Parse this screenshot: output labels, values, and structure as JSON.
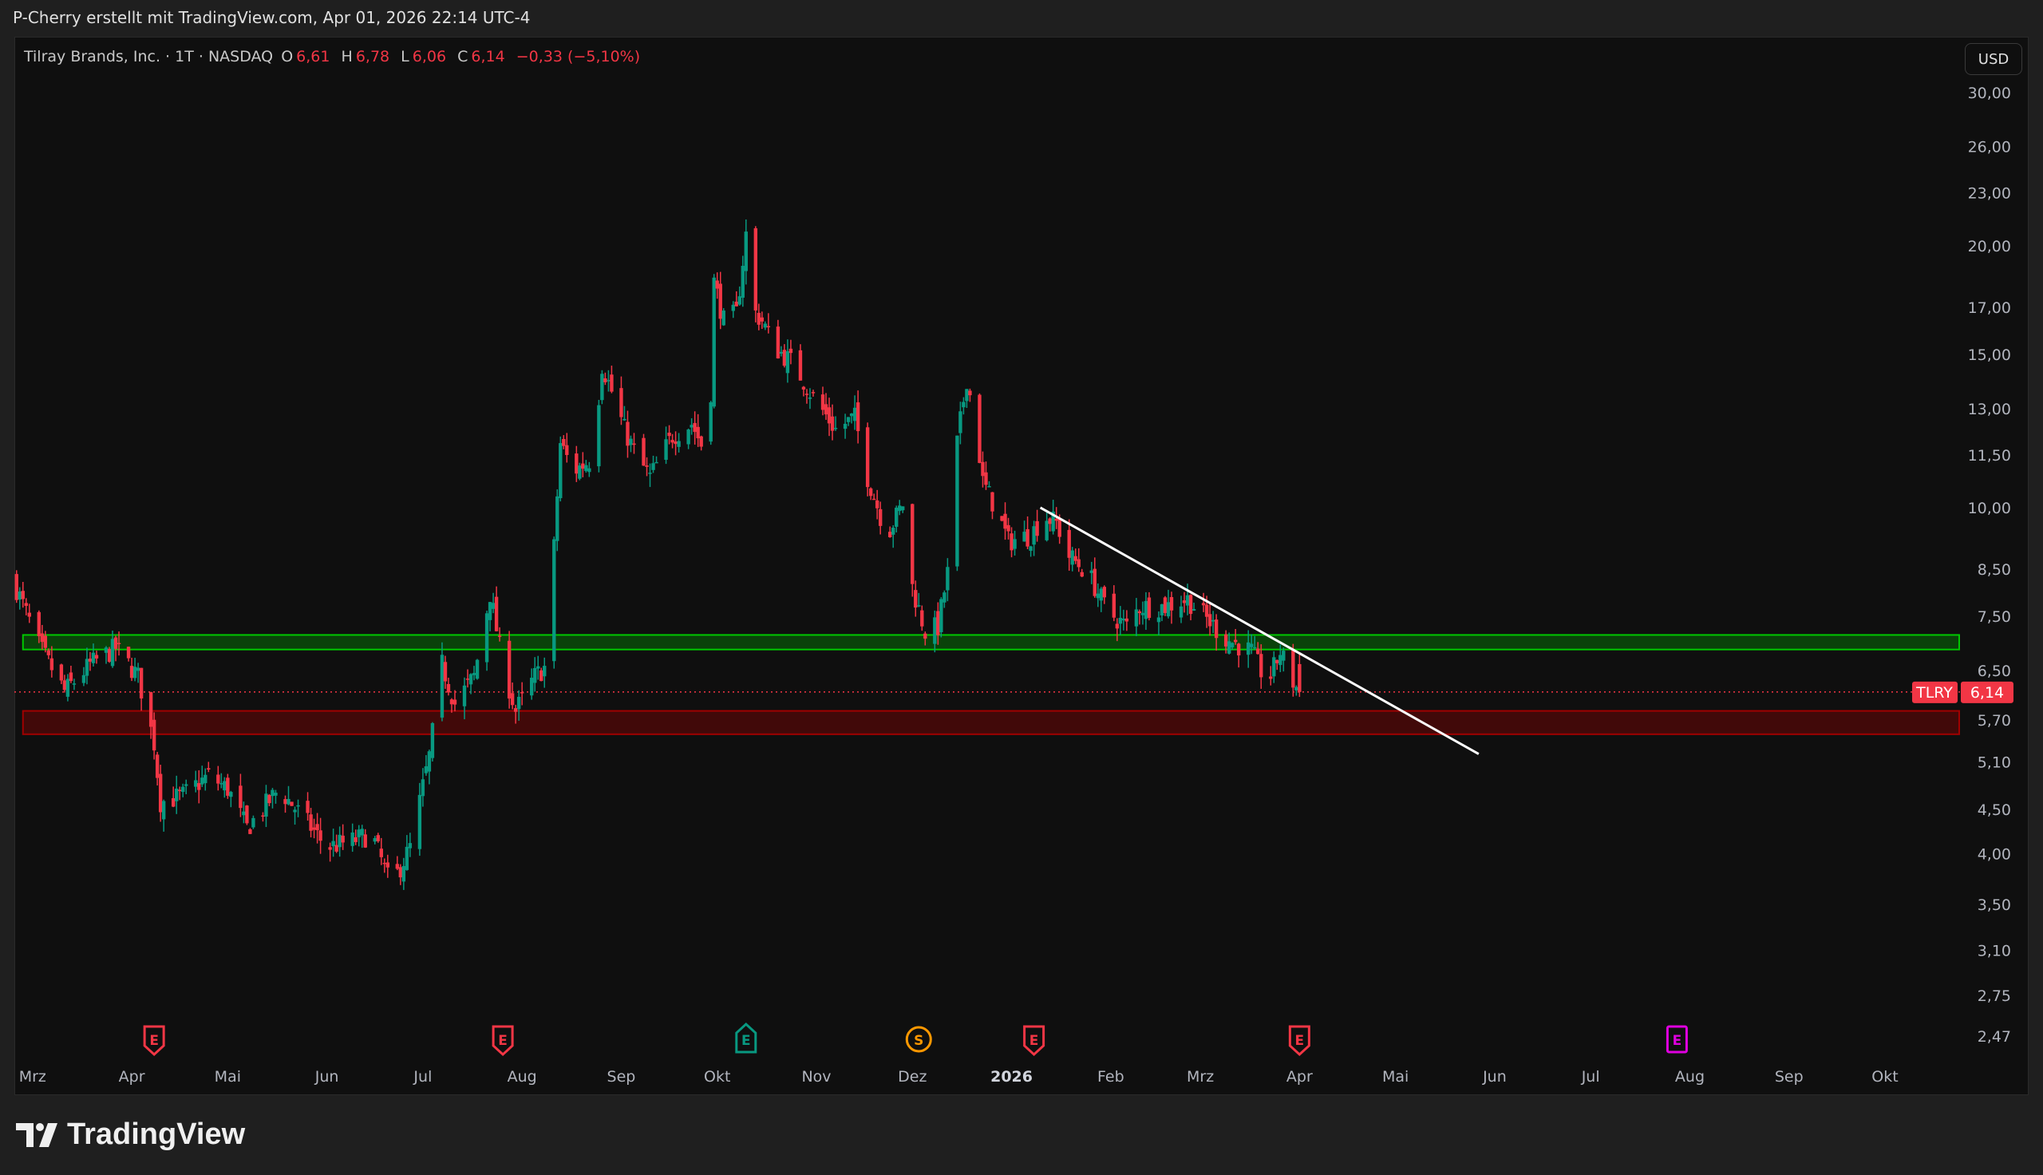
{
  "topbar": {
    "caption": "P-Cherry erstellt mit TradingView.com, Apr 01, 2026 22:14 UTC-4"
  },
  "legend": {
    "symbol": "Tilray Brands, Inc. · 1T · NASDAQ",
    "o_label": "O",
    "o": "6,61",
    "h_label": "H",
    "h": "6,78",
    "l_label": "L",
    "l": "6,06",
    "c_label": "C",
    "c": "6,14",
    "change": "−0,33 (−5,10%)"
  },
  "currency": "USD",
  "price_axis": [
    "30,00",
    "26,00",
    "23,00",
    "20,00",
    "17,00",
    "15,00",
    "13,00",
    "11,50",
    "10,00",
    "8,50",
    "7,50",
    "6,50",
    "5,70",
    "5,10",
    "4,50",
    "4,00",
    "3,50",
    "3,10",
    "2,75",
    "2,47"
  ],
  "time_axis": [
    {
      "label": "Mrz",
      "day": 0
    },
    {
      "label": "Apr",
      "day": 31
    },
    {
      "label": "Mai",
      "day": 61
    },
    {
      "label": "Jun",
      "day": 92
    },
    {
      "label": "Jul",
      "day": 122
    },
    {
      "label": "Aug",
      "day": 153
    },
    {
      "label": "Sep",
      "day": 184
    },
    {
      "label": "Okt",
      "day": 214
    },
    {
      "label": "Nov",
      "day": 245
    },
    {
      "label": "Dez",
      "day": 275
    },
    {
      "label": "2026",
      "day": 306,
      "bold": true
    },
    {
      "label": "Feb",
      "day": 337
    },
    {
      "label": "Mrz",
      "day": 365
    },
    {
      "label": "Apr",
      "day": 396
    },
    {
      "label": "Mai",
      "day": 426
    },
    {
      "label": "Jun",
      "day": 457
    },
    {
      "label": "Jul",
      "day": 487
    },
    {
      "label": "Aug",
      "day": 518
    },
    {
      "label": "Sep",
      "day": 549
    },
    {
      "label": "Okt",
      "day": 579
    }
  ],
  "last_price": {
    "ticker": "TLRY",
    "value": "6,14",
    "price": 6.14
  },
  "colors": {
    "up": "#089981",
    "down": "#f23645",
    "zone_support": "#00c800",
    "zone_resistance": "#a00000",
    "trendline": "#ffffff",
    "earnings_future": "#e000e0",
    "split": "#ff9800"
  },
  "chart_data": {
    "type": "candlestick",
    "x_unit": "days since 2025-03-01",
    "scale": "log",
    "price_path": [
      [
        -6,
        8.25
      ],
      [
        2,
        6.94
      ],
      [
        10,
        6.15
      ],
      [
        18,
        6.6
      ],
      [
        26,
        6.9
      ],
      [
        33,
        6.4
      ],
      [
        38,
        5.36
      ],
      [
        40,
        4.59
      ],
      [
        47,
        4.67
      ],
      [
        55,
        4.92
      ],
      [
        61,
        4.75
      ],
      [
        67,
        4.28
      ],
      [
        77,
        4.75
      ],
      [
        84,
        4.43
      ],
      [
        92,
        4.07
      ],
      [
        100,
        4.14
      ],
      [
        106,
        4.22
      ],
      [
        112,
        3.67
      ],
      [
        118,
        4.07
      ],
      [
        124,
        5.18
      ],
      [
        128,
        6.6
      ],
      [
        132,
        5.95
      ],
      [
        138,
        6.4
      ],
      [
        143,
        7.97
      ],
      [
        147,
        6.6
      ],
      [
        151,
        5.84
      ],
      [
        157,
        6.4
      ],
      [
        161,
        6.6
      ],
      [
        163,
        9.0
      ],
      [
        165,
        11.85
      ],
      [
        169,
        11.0
      ],
      [
        175,
        11.4
      ],
      [
        178,
        14.6
      ],
      [
        181,
        13.6
      ],
      [
        185,
        12.3
      ],
      [
        189,
        11.4
      ],
      [
        193,
        10.85
      ],
      [
        200,
        12.1
      ],
      [
        206,
        12.5
      ],
      [
        210,
        11.6
      ],
      [
        212,
        13.6
      ],
      [
        213,
        18.2
      ],
      [
        216,
        16.4
      ],
      [
        220,
        16.7
      ],
      [
        223,
        20.6
      ],
      [
        225,
        16.9
      ],
      [
        228,
        16.4
      ],
      [
        232,
        15.3
      ],
      [
        238,
        14.6
      ],
      [
        244,
        13.4
      ],
      [
        251,
        12.3
      ],
      [
        257,
        12.7
      ],
      [
        261,
        10.85
      ],
      [
        267,
        9.3
      ],
      [
        272,
        10.1
      ],
      [
        275,
        8.11
      ],
      [
        279,
        7.2
      ],
      [
        283,
        7.3
      ],
      [
        286,
        8.4
      ],
      [
        289,
        11.85
      ],
      [
        292,
        14.1
      ],
      [
        295,
        12.3
      ],
      [
        297,
        10.7
      ],
      [
        301,
        9.98
      ],
      [
        305,
        9.15
      ],
      [
        312,
        9.3
      ],
      [
        316,
        9.8
      ],
      [
        320,
        9.6
      ],
      [
        324,
        8.8
      ],
      [
        330,
        8.4
      ],
      [
        336,
        7.6
      ],
      [
        342,
        7.3
      ],
      [
        346,
        7.7
      ],
      [
        354,
        7.7
      ],
      [
        361,
        7.85
      ],
      [
        367,
        7.45
      ],
      [
        373,
        7.07
      ],
      [
        381,
        6.83
      ],
      [
        386,
        6.27
      ],
      [
        390,
        6.83
      ],
      [
        394,
        6.3
      ],
      [
        396,
        6.14
      ]
    ],
    "last_candle": {
      "open": 6.61,
      "high": 6.78,
      "low": 6.06,
      "close": 6.14
    },
    "zones": [
      {
        "name": "support",
        "top": 7.14,
        "bottom": 6.87,
        "from_day": -3
      },
      {
        "name": "resistance",
        "top": 5.84,
        "bottom": 5.49,
        "from_day": -3
      }
    ],
    "trendline": {
      "from": [
        315,
        10.0
      ],
      "to": [
        452,
        5.21
      ]
    },
    "events": [
      {
        "type": "E",
        "day": 38,
        "kind": "past-miss"
      },
      {
        "type": "E",
        "day": 147,
        "kind": "past-miss"
      },
      {
        "type": "E",
        "day": 223,
        "kind": "past-beat"
      },
      {
        "type": "S",
        "day": 277,
        "kind": "split"
      },
      {
        "type": "E",
        "day": 313,
        "kind": "past-miss"
      },
      {
        "type": "E",
        "day": 396,
        "kind": "past-miss"
      },
      {
        "type": "E",
        "day": 514,
        "kind": "future"
      }
    ]
  },
  "footer": {
    "brand": "TradingView"
  }
}
